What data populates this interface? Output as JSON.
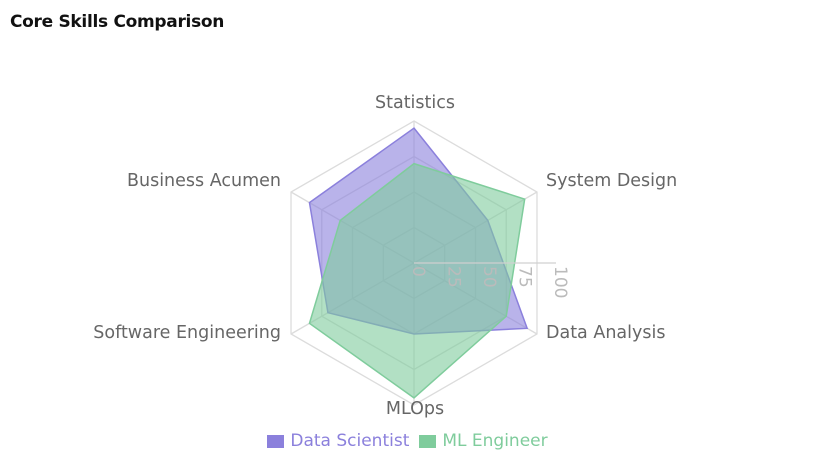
{
  "title": "Core Skills Comparison",
  "chart_data": {
    "type": "radar",
    "title": "Core Skills Comparison",
    "categories": [
      "Statistics",
      "System Design",
      "Data Analysis",
      "MLOps",
      "Software Engineering",
      "Business Acumen"
    ],
    "series": [
      {
        "name": "Data Scientist",
        "values": [
          95,
          60,
          92,
          50,
          70,
          85
        ],
        "color": "#8b80dc"
      },
      {
        "name": "ML Engineer",
        "values": [
          70,
          90,
          75,
          95,
          85,
          60
        ],
        "color": "#7fcc9c"
      }
    ],
    "rlim": [
      0,
      100
    ],
    "ticks": [
      "0",
      "25",
      "50",
      "75",
      "100"
    ],
    "grid": true,
    "legend_position": "bottom"
  }
}
